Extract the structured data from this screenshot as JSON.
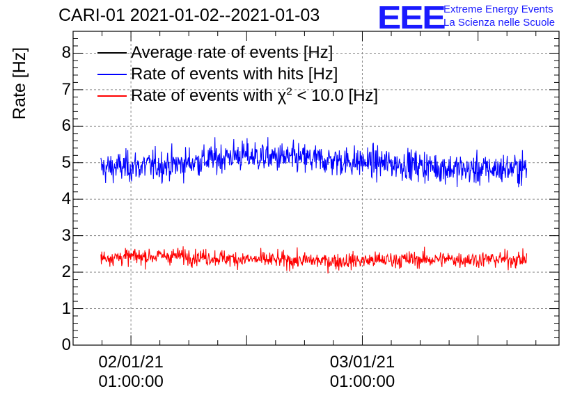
{
  "title": "CARI-01 2021-01-02--2021-01-03",
  "logo": {
    "mark": "EEE",
    "line1": "Extreme Energy Events",
    "line2": "La Scienza nelle Scuole",
    "color": "#1a1aff"
  },
  "chart_data": {
    "type": "line",
    "ylabel": "Rate [Hz]",
    "ylim": [
      0,
      8.6
    ],
    "yticks": [
      "0",
      "1",
      "2",
      "3",
      "4",
      "5",
      "6",
      "7",
      "8"
    ],
    "xticks": [
      {
        "date": "02/01/21",
        "time": "01:00:00"
      },
      {
        "date": "03/01/21",
        "time": "01:00:00"
      }
    ],
    "xrange_days": [
      -0.25,
      1.85
    ],
    "data_range_days": [
      -0.13,
      1.71
    ],
    "grid": true,
    "legend_position": "top-left",
    "series": [
      {
        "name": "Average rate of events [Hz]",
        "color": "#000000",
        "mean": null,
        "visible_data": false
      },
      {
        "name": "Rate of events with hits [Hz]",
        "color": "#0000ff",
        "mean": 5.0,
        "spread": 0.3,
        "profile": [
          [
            -0.13,
            4.85
          ],
          [
            0.2,
            4.95
          ],
          [
            0.45,
            5.2
          ],
          [
            0.6,
            5.15
          ],
          [
            0.9,
            5.05
          ],
          [
            1.2,
            4.95
          ],
          [
            1.45,
            4.8
          ],
          [
            1.71,
            4.85
          ]
        ]
      },
      {
        "name_prefix": "Rate of events with ",
        "name_symbol": "χ",
        "name_sup": "2",
        "name_suffix": " < 10.0 [Hz]",
        "color": "#ff0000",
        "mean": 2.35,
        "spread": 0.16,
        "profile": [
          [
            -0.13,
            2.4
          ],
          [
            0.2,
            2.45
          ],
          [
            0.5,
            2.35
          ],
          [
            0.9,
            2.3
          ],
          [
            1.2,
            2.35
          ],
          [
            1.71,
            2.35
          ]
        ]
      }
    ]
  }
}
